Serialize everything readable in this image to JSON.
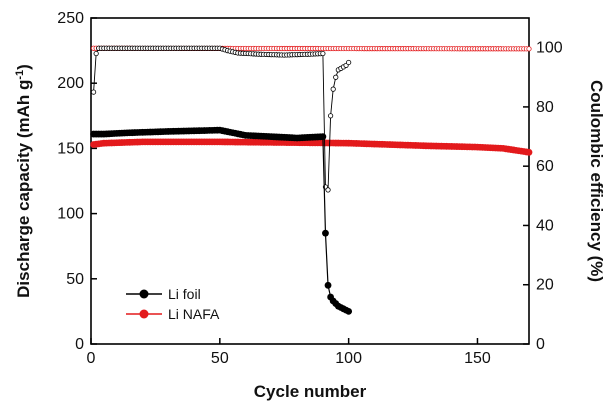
{
  "chart_data": {
    "type": "scatter",
    "xlabel": "Cycle number",
    "ylabel_left": "Discharge capacity (mAh g",
    "ylabel_left_sup": "-1",
    "ylabel_left_close": ")",
    "ylabel_right": "Coulombic efficiency (%)",
    "xlim": [
      0,
      170
    ],
    "ylim_left": [
      0,
      250
    ],
    "ylim_right": [
      0,
      110
    ],
    "x_ticks": [
      0,
      50,
      100,
      150
    ],
    "x_tick_labels": [
      "0",
      "50",
      "100",
      "150"
    ],
    "y_left_ticks": [
      0,
      50,
      100,
      150,
      200,
      250
    ],
    "y_left_tick_labels": [
      "0",
      "50",
      "100",
      "150",
      "200",
      "250"
    ],
    "y_right_ticks": [
      0,
      20,
      40,
      60,
      80,
      100
    ],
    "y_right_tick_labels": [
      "0",
      "20",
      "40",
      "60",
      "80",
      "100"
    ],
    "legend": {
      "position": "bottom-left",
      "entries": [
        "Li foil",
        "Li NAFA"
      ]
    },
    "series": [
      {
        "name": "Li foil",
        "kind": "capacity",
        "axis": "left",
        "color": "#000000",
        "capacity_profile": [
          [
            1,
            161
          ],
          [
            5,
            161
          ],
          [
            15,
            162
          ],
          [
            30,
            163
          ],
          [
            50,
            164
          ],
          [
            55,
            162
          ],
          [
            60,
            160
          ],
          [
            70,
            159
          ],
          [
            80,
            158
          ],
          [
            90,
            159
          ]
        ],
        "tail": [
          [
            91,
            85
          ],
          [
            92,
            45
          ],
          [
            93,
            36
          ],
          [
            94,
            33
          ],
          [
            95,
            31
          ],
          [
            96,
            29
          ],
          [
            97,
            28
          ],
          [
            98,
            27
          ],
          [
            99,
            26
          ],
          [
            100,
            25
          ]
        ]
      },
      {
        "name": "Li NAFA",
        "kind": "capacity",
        "axis": "left",
        "color": "#e31a1c",
        "capacity_profile": [
          [
            1,
            153
          ],
          [
            5,
            154
          ],
          [
            20,
            155
          ],
          [
            50,
            155
          ],
          [
            100,
            154
          ],
          [
            130,
            152
          ],
          [
            150,
            151
          ],
          [
            160,
            150
          ],
          [
            170,
            147
          ]
        ]
      },
      {
        "name": "Li foil",
        "kind": "coulombic_efficiency",
        "axis": "right",
        "color": "#000000",
        "ce_profile": [
          [
            1,
            85
          ],
          [
            2,
            98
          ],
          [
            3,
            99.8
          ],
          [
            50,
            99.8
          ],
          [
            53,
            99
          ],
          [
            57,
            98.2
          ],
          [
            65,
            97.8
          ],
          [
            75,
            97.5
          ],
          [
            85,
            97.8
          ],
          [
            90,
            98
          ]
        ],
        "ce_tail": [
          [
            91,
            53
          ],
          [
            92,
            52
          ],
          [
            93,
            77
          ],
          [
            94,
            86
          ],
          [
            95,
            90
          ],
          [
            96,
            92.5
          ],
          [
            97,
            93
          ],
          [
            98,
            93.5
          ],
          [
            99,
            94
          ],
          [
            100,
            95
          ]
        ]
      },
      {
        "name": "Li NAFA",
        "kind": "coulombic_efficiency",
        "axis": "right",
        "color": "#e31a1c",
        "ce_profile": [
          [
            1,
            99.8
          ],
          [
            170,
            99.6
          ]
        ]
      }
    ]
  }
}
